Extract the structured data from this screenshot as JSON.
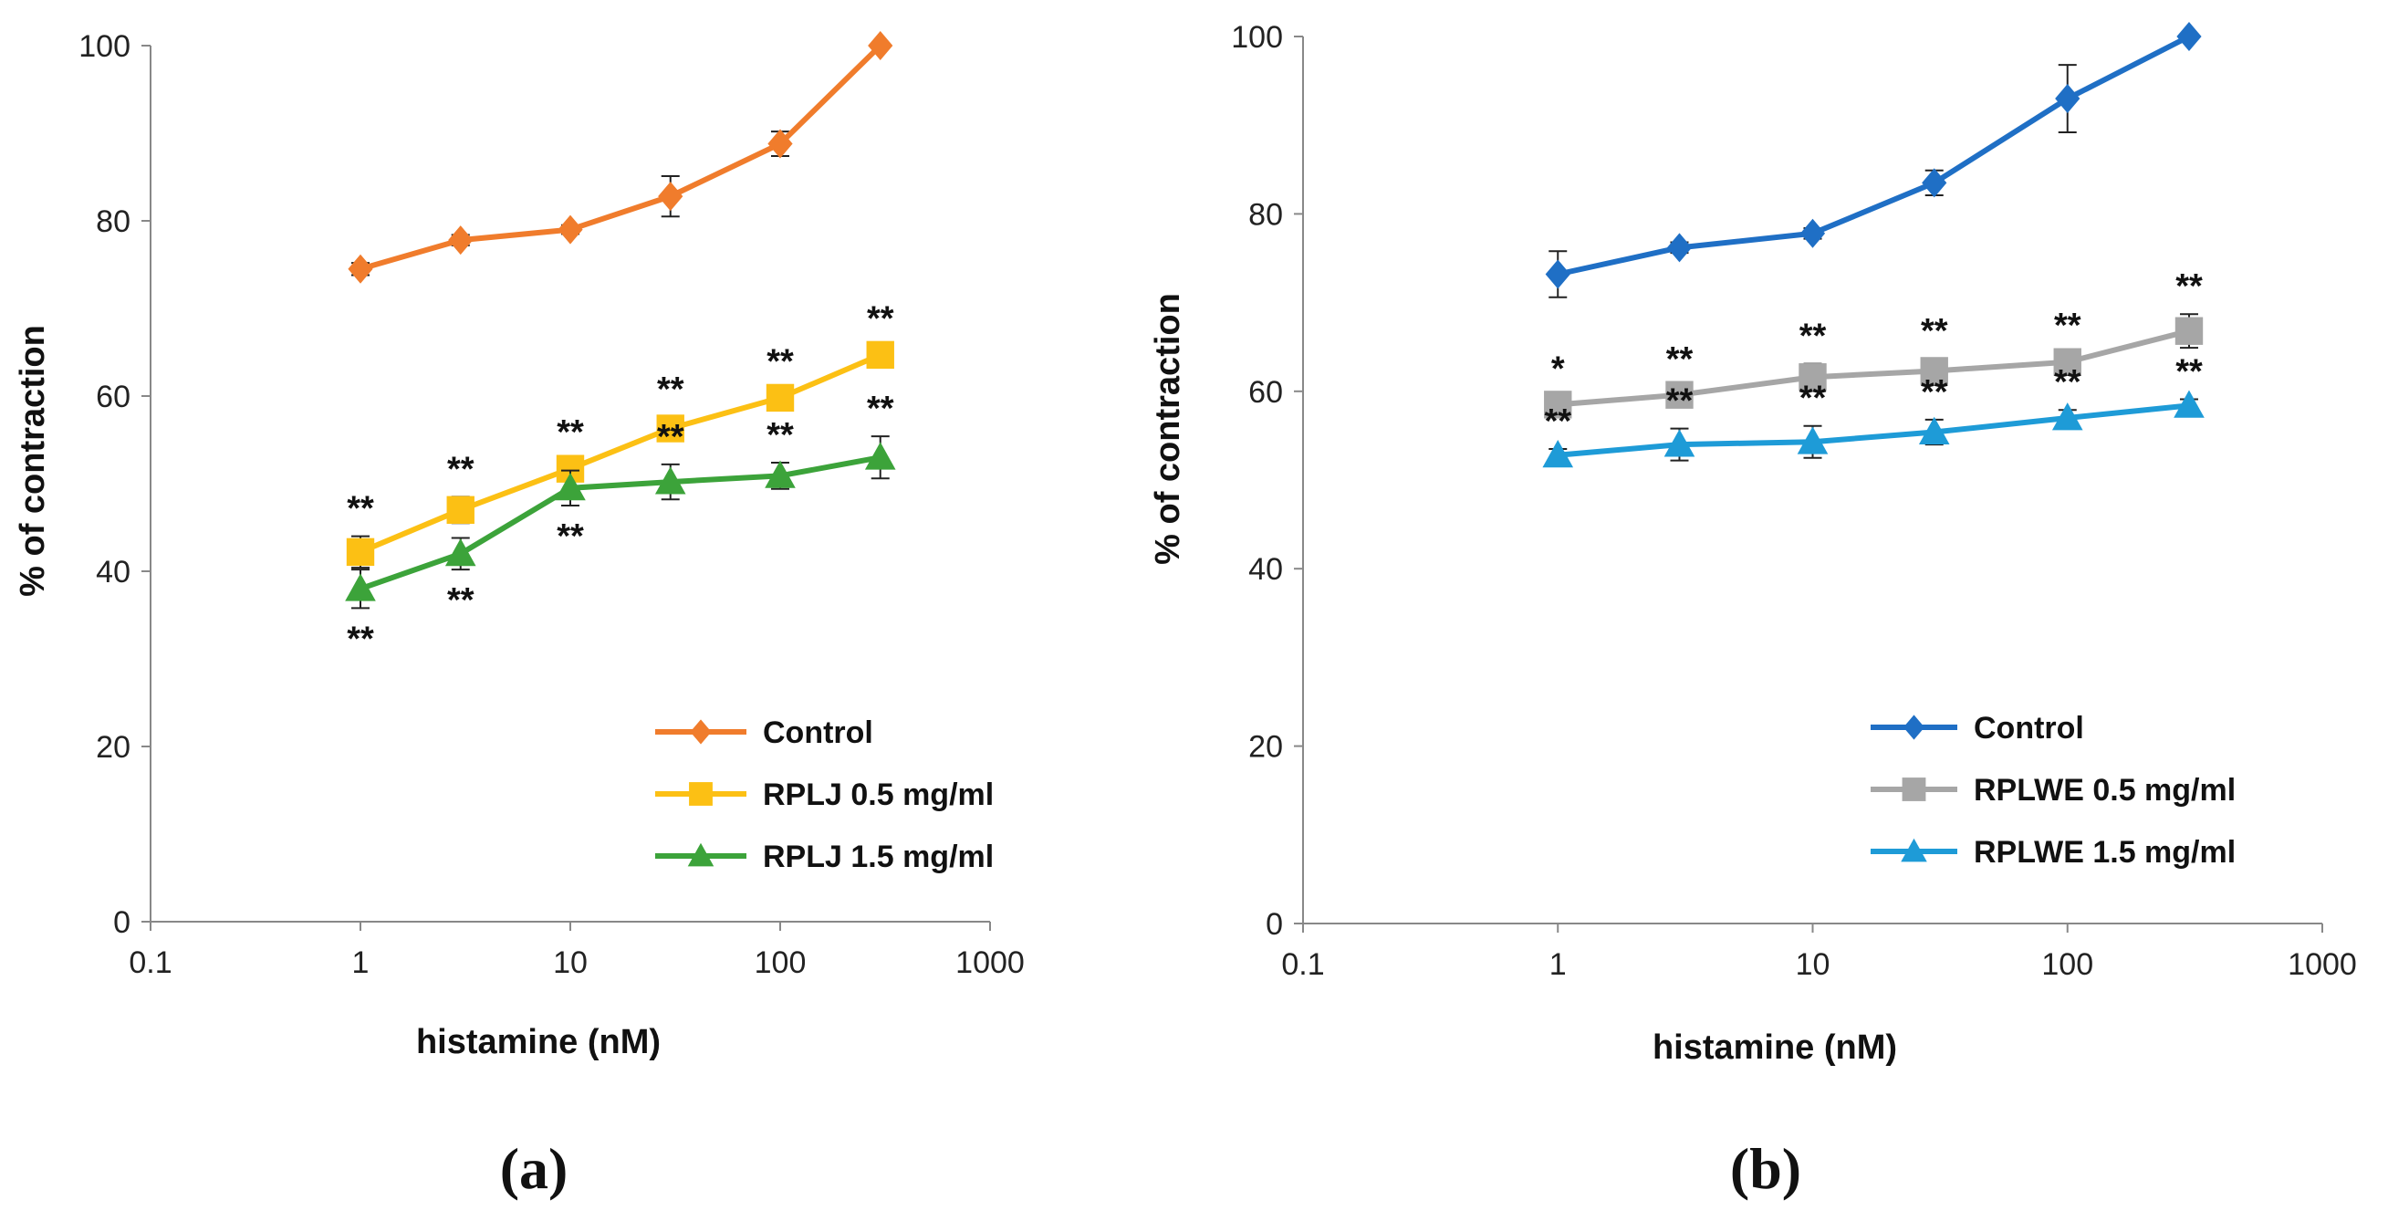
{
  "chart_data": [
    {
      "type": "line",
      "panel_label": "(a)",
      "xlabel": "histamine (nM)",
      "ylabel": "% of contraction",
      "xscale": "log",
      "xlim": [
        0.1,
        1000
      ],
      "ylim": [
        0,
        100
      ],
      "x_ticks": [
        "0.1",
        "1",
        "10",
        "100",
        "1000"
      ],
      "y_ticks": [
        "0",
        "20",
        "40",
        "60",
        "80",
        "100"
      ],
      "x": [
        1,
        3,
        10,
        30,
        100,
        300
      ],
      "legend_position": "bottom-right",
      "series": [
        {
          "name": "Control",
          "color": "#F07C2C",
          "marker": "diamond",
          "values": [
            74.5,
            77.8,
            79.0,
            82.8,
            88.8,
            100
          ],
          "errors": [
            0.7,
            0.6,
            0.5,
            2.3,
            1.4,
            0
          ],
          "annotations": []
        },
        {
          "name": "RPLJ 0.5 mg/ml",
          "color": "#FCC014",
          "marker": "square",
          "values": [
            42.2,
            47.0,
            51.7,
            56.3,
            59.8,
            64.7
          ],
          "errors": [
            1.8,
            1.5,
            1.0,
            1.3,
            1.0,
            1.0
          ],
          "annotations": [
            "**",
            "**",
            "**",
            "**",
            "**",
            "**"
          ]
        },
        {
          "name": "RPLJ 1.5 mg/ml",
          "color": "#3CA33A",
          "marker": "triangle",
          "values": [
            38.0,
            42.0,
            49.5,
            50.2,
            50.9,
            53.0
          ],
          "errors": [
            2.2,
            1.8,
            2.0,
            2.0,
            1.5,
            2.4
          ],
          "annotations": [
            "**",
            "**",
            "**",
            "**",
            "**",
            "**"
          ]
        }
      ]
    },
    {
      "type": "line",
      "panel_label": "(b)",
      "xlabel": "histamine (nM)",
      "ylabel": "% of contraction",
      "xscale": "log",
      "xlim": [
        0.1,
        1000
      ],
      "ylim": [
        0,
        100
      ],
      "x_ticks": [
        "0.1",
        "1",
        "10",
        "100",
        "1000"
      ],
      "y_ticks": [
        "0",
        "20",
        "40",
        "60",
        "80",
        "100"
      ],
      "x": [
        1,
        3,
        10,
        30,
        100,
        300
      ],
      "legend_position": "bottom-right",
      "series": [
        {
          "name": "Control",
          "color": "#1F6FC5",
          "marker": "diamond",
          "values": [
            73.2,
            76.2,
            77.8,
            83.5,
            93.0,
            100
          ],
          "errors": [
            2.6,
            0.6,
            0.6,
            1.4,
            3.8,
            0
          ],
          "annotations": []
        },
        {
          "name": "RPLWE 0.5 mg/ml",
          "color": "#A6A6A6",
          "marker": "square",
          "values": [
            58.5,
            59.6,
            61.6,
            62.3,
            63.3,
            66.8
          ],
          "errors": [
            0.9,
            0.9,
            1.5,
            1.4,
            1.0,
            1.9
          ],
          "annotations": [
            "*",
            "**",
            "**",
            "**",
            "**",
            "**"
          ]
        },
        {
          "name": "RPLWE 1.5 mg/ml",
          "color": "#1E9BD7",
          "marker": "triangle",
          "values": [
            52.8,
            54.0,
            54.3,
            55.4,
            57.0,
            58.4
          ],
          "errors": [
            0.7,
            1.8,
            1.8,
            1.4,
            0.9,
            0.7
          ],
          "annotations": [
            "**",
            "**",
            "**",
            "**",
            "**",
            "**"
          ]
        }
      ]
    }
  ]
}
